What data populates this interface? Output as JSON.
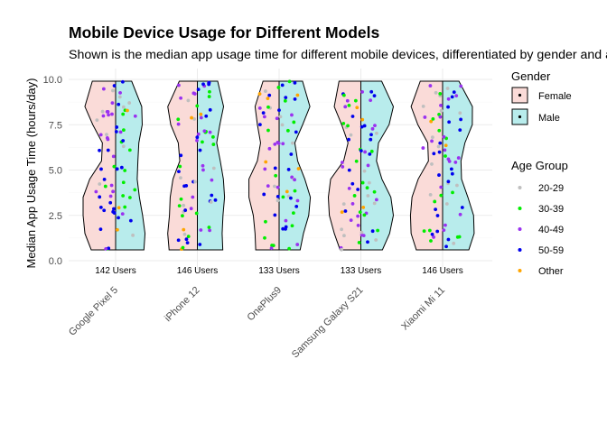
{
  "chart_data": {
    "type": "violin",
    "title": "Mobile Device Usage for Different Models",
    "subtitle": "Shown is the median app usage time for different mobile devices, differentiated by gender and age group",
    "xlabel": "",
    "ylabel": "Median App Usage Time (hours/day)",
    "ylim": [
      0,
      10
    ],
    "yticks": [
      "0.0",
      "2.5",
      "5.0",
      "7.5",
      "10.0"
    ],
    "ytick_values": [
      0,
      2.5,
      5,
      7.5,
      10
    ],
    "grid": true,
    "categories": [
      "Google Pixel 5",
      "iPhone 12",
      "OnePlus9",
      "Samsung Galaxy S21",
      "Xiaomi Mi 11"
    ],
    "user_counts": [
      "142 Users",
      "146 Users",
      "133 Users",
      "133 Users",
      "146 Users"
    ],
    "gender_legend": {
      "title": "Gender",
      "entries": [
        {
          "name": "Female",
          "color": "#fadbd8"
        },
        {
          "name": "Male",
          "color": "#b8ecec"
        }
      ]
    },
    "age_legend": {
      "title": "Age Group",
      "entries": [
        {
          "name": "20-29",
          "color": "#bfbfbf"
        },
        {
          "name": "30-39",
          "color": "#00ee00"
        },
        {
          "name": "40-49",
          "color": "#9a32f0"
        },
        {
          "name": "50-59",
          "color": "#0000ee"
        },
        {
          "name": "Other",
          "color": "#ffa500"
        }
      ]
    },
    "legend_position": "right",
    "y_range_shown": [
      0.6,
      9.9
    ],
    "female_shape": [
      [
        0.6,
        0.75
      ],
      [
        1.5,
        0.85
      ],
      [
        2.5,
        0.9
      ],
      [
        3.5,
        0.95
      ],
      [
        4.5,
        0.85
      ],
      [
        5.5,
        0.55
      ],
      [
        6.5,
        0.5
      ],
      [
        7.5,
        0.7
      ],
      [
        8.5,
        0.85
      ],
      [
        9.9,
        0.6
      ]
    ],
    "male_shape": [
      [
        0.6,
        0.75
      ],
      [
        1.5,
        0.85
      ],
      [
        2.5,
        0.9
      ],
      [
        3.5,
        0.85
      ],
      [
        4.5,
        0.7
      ],
      [
        5.5,
        0.6
      ],
      [
        6.5,
        0.6
      ],
      [
        7.5,
        0.8
      ],
      [
        8.5,
        0.9
      ],
      [
        9.9,
        0.6
      ]
    ]
  }
}
